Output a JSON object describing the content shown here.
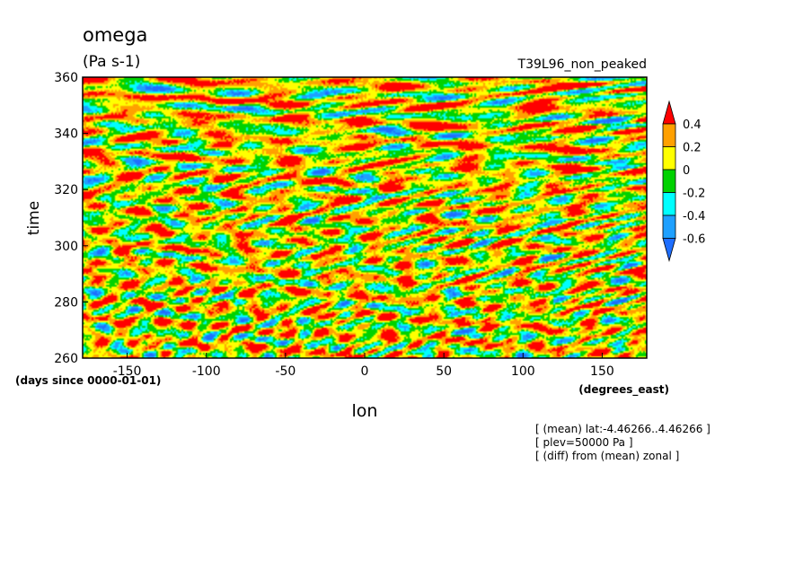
{
  "chart_data": {
    "type": "heatmap",
    "title": "omega",
    "units": "(Pa s-1)",
    "run_label": "T39L96_non_peaked",
    "xlabel": "lon",
    "ylabel": "time",
    "x_units": "(degrees_east)",
    "y_units": "(days since 0000-01-01)",
    "xlim": [
      -178.125,
      178.125
    ],
    "ylim": [
      260,
      360
    ],
    "x_ticks": [
      -150,
      -100,
      -50,
      0,
      50,
      100,
      150
    ],
    "y_ticks": [
      260,
      280,
      300,
      320,
      340,
      360
    ],
    "x_tick_labels": [
      "-150",
      "-100",
      "-50",
      "0",
      "50",
      "100",
      "150"
    ],
    "y_tick_labels": [
      "260",
      "280",
      "300",
      "320",
      "340",
      "360"
    ],
    "colorbar": {
      "levels": [
        -0.6,
        -0.4,
        -0.2,
        0,
        0.2,
        0.4
      ],
      "level_labels": [
        "-0.6",
        "-0.4",
        "-0.2",
        "0",
        "0.2",
        "0.4"
      ],
      "colors": [
        "#1e6eff",
        "#1ea0ff",
        "#00ffff",
        "#00d200",
        "#ffff00",
        "#ffa000",
        "#ff0000"
      ],
      "extend": "both"
    },
    "annotations": [
      "[ (mean) lat:-4.46266..4.46266 ]",
      "[ plev=50000 Pa ]",
      "[ (diff) from (mean) zonal ]"
    ],
    "grid": false
  }
}
